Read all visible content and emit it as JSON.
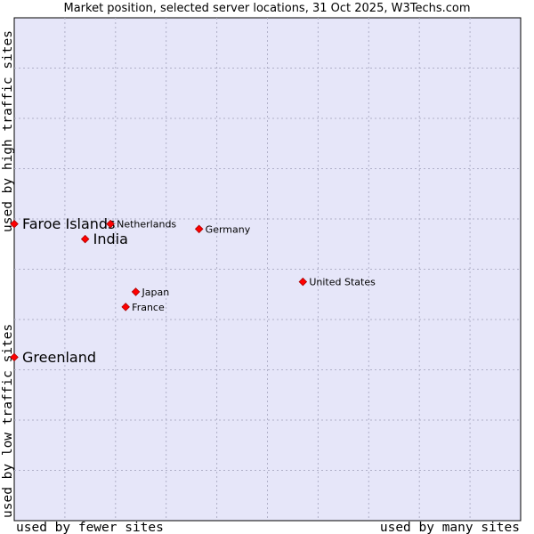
{
  "chart_data": {
    "type": "scatter",
    "title": "Market position, selected server locations, 31 Oct 2025, W3Techs.com",
    "xlabel_left": "used by fewer sites",
    "xlabel_right": "used by many sites",
    "ylabel_bottom": "used by low traffic sites",
    "ylabel_top": "used by high traffic sites",
    "xlim": [
      0,
      100
    ],
    "ylim": [
      0,
      100
    ],
    "grid": true,
    "points": [
      {
        "label": "Faroe Islands",
        "x": 0.0,
        "y": 59.0,
        "emphasis": true
      },
      {
        "label": "India",
        "x": 14.0,
        "y": 56.0,
        "emphasis": true
      },
      {
        "label": "Netherlands",
        "x": 19.0,
        "y": 59.0,
        "emphasis": false
      },
      {
        "label": "Germany",
        "x": 36.5,
        "y": 58.0,
        "emphasis": false
      },
      {
        "label": "United States",
        "x": 57.0,
        "y": 47.5,
        "emphasis": false
      },
      {
        "label": "Japan",
        "x": 24.0,
        "y": 45.5,
        "emphasis": false
      },
      {
        "label": "France",
        "x": 22.0,
        "y": 42.5,
        "emphasis": false
      },
      {
        "label": "Greenland",
        "x": 0.0,
        "y": 32.5,
        "emphasis": true
      }
    ]
  },
  "colors": {
    "plot_background": "#e6e6f9",
    "grid": "#b0b0c8",
    "marker": "#ff0000",
    "marker_edge": "#aa0000"
  }
}
